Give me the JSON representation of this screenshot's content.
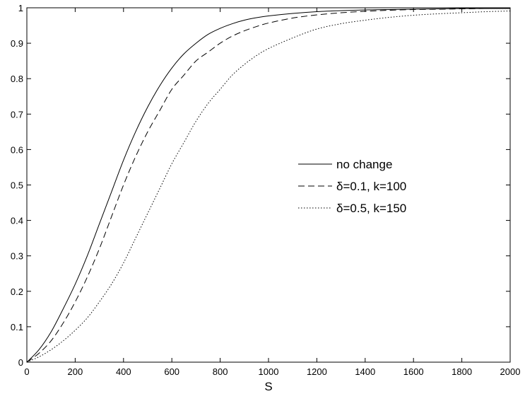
{
  "chart_data": {
    "type": "line",
    "title": "",
    "xlabel": "S",
    "ylabel": "",
    "xlim": [
      0,
      2000
    ],
    "ylim": [
      0,
      1
    ],
    "xticks": [
      0,
      200,
      400,
      600,
      800,
      1000,
      1200,
      1400,
      1600,
      1800,
      2000
    ],
    "yticks": [
      0,
      0.1,
      0.2,
      0.3,
      0.4,
      0.5,
      0.6,
      0.7,
      0.8,
      0.9,
      1
    ],
    "xtick_labels": [
      "0",
      "200",
      "400",
      "600",
      "800",
      "1000",
      "1200",
      "1400",
      "1600",
      "1800",
      "2000"
    ],
    "ytick_labels": [
      "0",
      "0.1",
      "0.2",
      "0.3",
      "0.4",
      "0.5",
      "0.6",
      "0.7",
      "0.8",
      "0.9",
      "1"
    ],
    "grid": false,
    "legend_position": "center-right",
    "x": [
      0,
      50,
      100,
      150,
      200,
      250,
      300,
      350,
      400,
      450,
      500,
      550,
      600,
      650,
      700,
      750,
      800,
      850,
      900,
      950,
      1000,
      1100,
      1200,
      1300,
      1400,
      1500,
      1600,
      1700,
      1800,
      1900,
      2000
    ],
    "series": [
      {
        "name": "no change",
        "style": "solid",
        "color": "#000000",
        "values": [
          0,
          0.035,
          0.085,
          0.15,
          0.22,
          0.3,
          0.39,
          0.48,
          0.57,
          0.65,
          0.72,
          0.78,
          0.83,
          0.87,
          0.9,
          0.925,
          0.942,
          0.955,
          0.965,
          0.972,
          0.977,
          0.984,
          0.989,
          0.992,
          0.994,
          0.995,
          0.996,
          0.997,
          0.998,
          0.998,
          0.998
        ]
      },
      {
        "name": "δ=0.1, k=100",
        "style": "dashed",
        "color": "#000000",
        "values": [
          0,
          0.025,
          0.06,
          0.11,
          0.17,
          0.24,
          0.32,
          0.41,
          0.5,
          0.58,
          0.65,
          0.71,
          0.77,
          0.81,
          0.85,
          0.875,
          0.9,
          0.92,
          0.935,
          0.947,
          0.957,
          0.971,
          0.98,
          0.986,
          0.99,
          0.993,
          0.995,
          0.996,
          0.997,
          0.998,
          0.998
        ]
      },
      {
        "name": "δ=0.5, k=150",
        "style": "dotted",
        "color": "#000000",
        "values": [
          0,
          0.015,
          0.035,
          0.06,
          0.09,
          0.125,
          0.17,
          0.22,
          0.28,
          0.35,
          0.42,
          0.49,
          0.56,
          0.62,
          0.68,
          0.73,
          0.77,
          0.81,
          0.84,
          0.865,
          0.885,
          0.915,
          0.94,
          0.955,
          0.965,
          0.973,
          0.979,
          0.983,
          0.986,
          0.989,
          0.991
        ]
      }
    ]
  }
}
